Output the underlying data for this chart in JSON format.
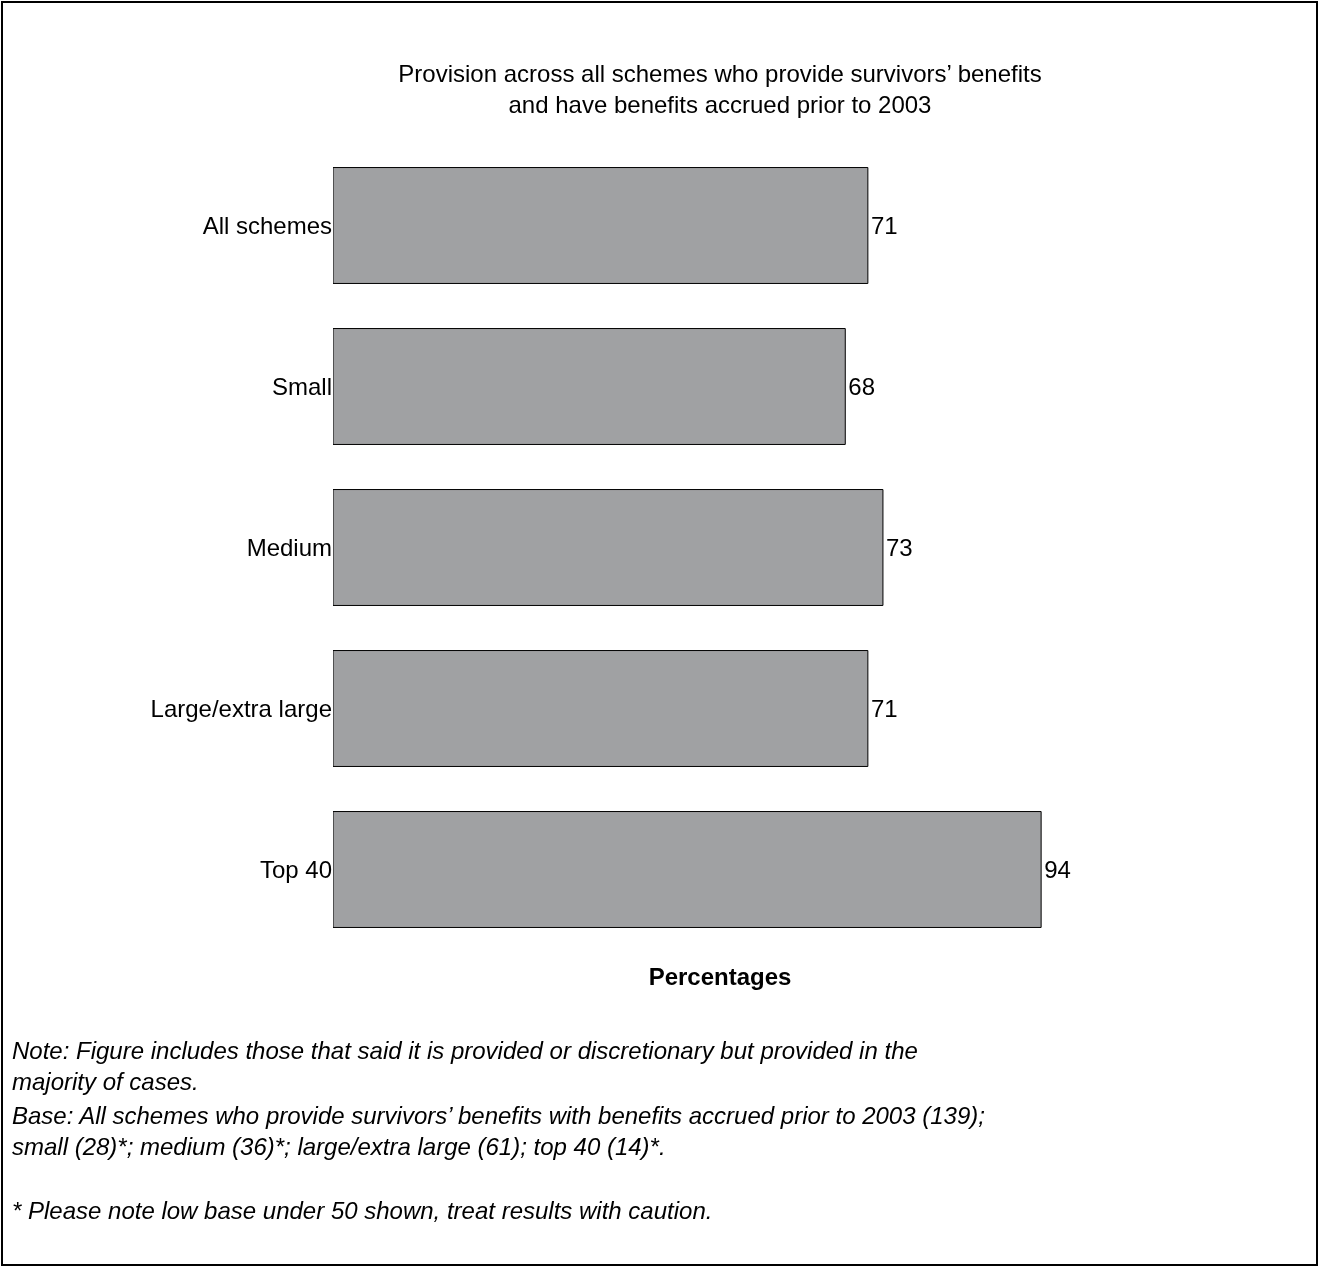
{
  "chart_data": {
    "type": "bar",
    "orientation": "horizontal",
    "tick_labels": "y",
    "title": "Provision across all schemes who provide survivors’ benefits\nand have benefits accrued prior to 2003",
    "xlabel": "Percentages",
    "categories": [
      "All schemes",
      "Small",
      "Medium",
      "Large/extra large",
      "Top 40"
    ],
    "values": [
      71,
      68,
      73,
      71,
      94
    ],
    "color": "#a0a1a3",
    "data_labels": true,
    "legend": false,
    "annotations": [
      "Note: Figure includes those that said it is provided or discretionary but provided in the majority of cases.",
      "Base: All schemes who provide survivors’ benefits with benefits accrued prior to 2003 (139); small (28)*; medium (36)*; large/extra large (61); top 40 (14)*.",
      "* Please note low base under 50 shown, treat results with caution."
    ]
  }
}
